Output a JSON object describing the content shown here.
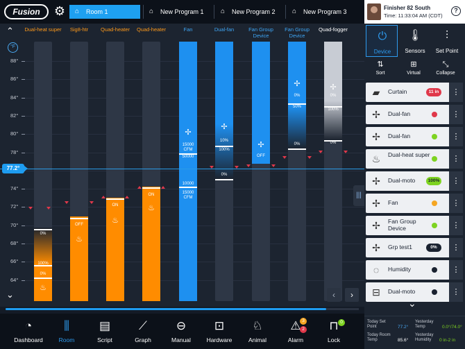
{
  "app": {
    "logo_text": "Fusion"
  },
  "tabs": [
    {
      "label": "Room 1",
      "active": true
    },
    {
      "label": "New Program 1",
      "active": false
    },
    {
      "label": "New Program 2",
      "active": false
    },
    {
      "label": "New Program 3",
      "active": false
    }
  ],
  "user": {
    "name": "Finisher 82 South",
    "time": "Time: 11:33:04 AM (CDT)",
    "help_label": "?"
  },
  "scale": {
    "unit": "°F",
    "ticks": [
      "88°",
      "86°",
      "84°",
      "82°",
      "80°",
      "78°",
      "76°",
      "74°",
      "72°",
      "70°",
      "68°",
      "66°",
      "64°"
    ],
    "setpoint_label": "77.2°"
  },
  "devices": [
    {
      "name": "Dual-heat super",
      "labels": [
        "0%",
        "100%",
        "0%"
      ],
      "icon": "heater-icon"
    },
    {
      "name": "Sig8-htr",
      "labels": [
        "OFF"
      ],
      "icon": "heater-icon"
    },
    {
      "name": "Quad-heater",
      "labels": [
        "ON"
      ],
      "icon": "heater-icon"
    },
    {
      "name": "Quad-heater",
      "labels": [
        "ON"
      ],
      "icon": "heater-icon"
    },
    {
      "name": "Fan",
      "labels": [
        "15000 CFM",
        "50000",
        "10000",
        "15000 CFM"
      ],
      "icon": "fan-icon"
    },
    {
      "name": "Dual-fan",
      "labels": [
        "10%",
        "100%",
        "0%"
      ],
      "icon": "fan-icon"
    },
    {
      "name": "Fan Group Device",
      "labels": [
        "OFF"
      ],
      "icon": "fan-icon"
    },
    {
      "name": "Fan Group Device",
      "labels": [
        "0%",
        "50%",
        "0%"
      ],
      "icon": "fan-icon"
    },
    {
      "name": "Quad-fogger",
      "labels": [
        "0%",
        "100%",
        "0%"
      ],
      "icon": "fan-icon"
    }
  ],
  "bottom_nav": [
    {
      "label": "Dashboard",
      "icon": "dashboard-icon",
      "active": false
    },
    {
      "label": "Room",
      "icon": "room-icon",
      "active": true
    },
    {
      "label": "Script",
      "icon": "script-icon",
      "active": false
    },
    {
      "label": "Graph",
      "icon": "graph-icon",
      "active": false
    },
    {
      "label": "Manual",
      "icon": "manual-icon",
      "active": false
    },
    {
      "label": "Hardware",
      "icon": "hardware-icon",
      "active": false
    },
    {
      "label": "Animal",
      "icon": "animal-icon",
      "active": false
    },
    {
      "label": "Alarm",
      "icon": "alarm-icon",
      "active": false,
      "badges": [
        "3",
        "2"
      ]
    },
    {
      "label": "Lock",
      "icon": "lock-icon",
      "active": false,
      "badges": [
        "0"
      ]
    }
  ],
  "right_panel": {
    "tabs": [
      {
        "label": "Device",
        "active": true
      },
      {
        "label": "Sensors",
        "active": false
      },
      {
        "label": "Set Point",
        "active": false
      }
    ],
    "tools": [
      {
        "label": "Sort"
      },
      {
        "label": "Virtual"
      },
      {
        "label": "Collapse"
      }
    ],
    "device_list": [
      {
        "name": "Curtain",
        "badge": "11 in",
        "badge_color": "#e0384a"
      },
      {
        "name": "Dual-fan",
        "dot": "#e0384a"
      },
      {
        "name": "Dual-fan",
        "dot": "#7ed321"
      },
      {
        "name": "Dual-heat super",
        "dot": "#7ed321"
      },
      {
        "name": "Dual-moto",
        "badge": "100%",
        "badge_color": "#7ed321"
      },
      {
        "name": "Fan",
        "dot": "#f5a623"
      },
      {
        "name": "Fan Group Device",
        "dot": "#7ed321"
      },
      {
        "name": "Grp test1",
        "badge": "0%",
        "badge_color": "#1a2230"
      },
      {
        "name": "Humidity",
        "dot": "#1a2230"
      },
      {
        "name": "Dual-moto",
        "dot": "#1a2230"
      }
    ]
  },
  "footer": {
    "today_setpoint_label": "Today Set Point",
    "today_setpoint_value": "77.2°",
    "today_roomtemp_label": "Today Room Temp",
    "today_roomtemp_value": "85.6°",
    "yesterday_temp_label": "Yesterday Temp",
    "yesterday_temp_value": "0.0°/74.0°",
    "yesterday_humidity_label": "Yesterday Humidity",
    "yesterday_humidity_value": "0 in-2 in"
  },
  "colors": {
    "accent": "#1e9cf0",
    "heater": "#ff8c00",
    "fan": "#1e90f0",
    "fogger": "#c8ccd4",
    "setpoint_marker": "#e0384a"
  }
}
